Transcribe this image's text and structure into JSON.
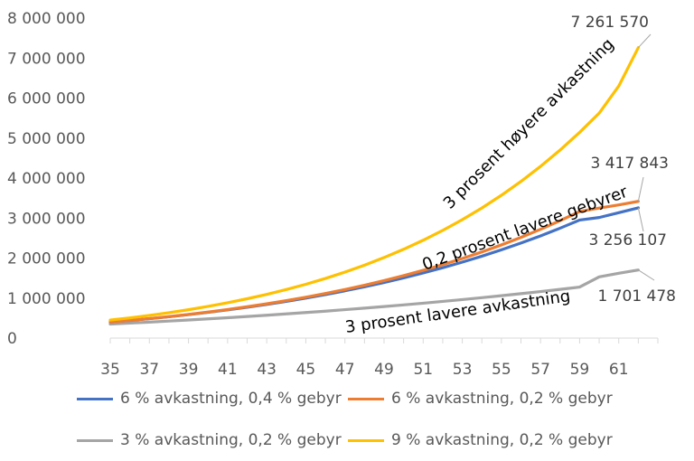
{
  "chart_data": {
    "type": "line",
    "x": [
      35,
      36,
      37,
      38,
      39,
      40,
      41,
      42,
      43,
      44,
      45,
      46,
      47,
      48,
      49,
      50,
      51,
      52,
      53,
      54,
      55,
      56,
      57,
      58,
      59,
      60,
      61,
      62
    ],
    "x_tick_labels": [
      "35",
      "37",
      "39",
      "41",
      "43",
      "45",
      "47",
      "49",
      "51",
      "53",
      "55",
      "57",
      "59",
      "61"
    ],
    "ylim": [
      0,
      8000000
    ],
    "y_tick_labels": [
      "0",
      "1 000 000",
      "2 000 000",
      "3 000 000",
      "4 000 000",
      "5 000 000",
      "6 000 000",
      "7 000 000",
      "8 000 000"
    ],
    "y_ticks": [
      0,
      1000000,
      2000000,
      3000000,
      4000000,
      5000000,
      6000000,
      7000000,
      8000000
    ],
    "grid": false,
    "legend_position": "bottom",
    "series": [
      {
        "name": "6 % avkastning, 0,4 % gebyr",
        "color": "#4472C4",
        "values": [
          400000,
          440000,
          485000,
          533000,
          586000,
          643000,
          704000,
          770000,
          841000,
          917000,
          999000,
          1087000,
          1181000,
          1282000,
          1389000,
          1504000,
          1627000,
          1758000,
          1898000,
          2047000,
          2206000,
          2375000,
          2555000,
          2747000,
          2951000,
          3014000,
          3134000,
          3256107
        ]
      },
      {
        "name": "6 % avkastning, 0,2 % gebyr",
        "color": "#ED7D31",
        "values": [
          400000,
          441000,
          487000,
          537000,
          591000,
          650000,
          713000,
          782000,
          856000,
          936000,
          1022000,
          1114000,
          1214000,
          1321000,
          1436000,
          1560000,
          1693000,
          1836000,
          1989000,
          2153000,
          2329000,
          2517000,
          2719000,
          2935000,
          3166000,
          3250000,
          3330000,
          3417843
        ]
      },
      {
        "name": "3 % avkastning, 0,2 % gebyr",
        "color": "#A5A5A5",
        "values": [
          350000,
          374000,
          399000,
          425000,
          452000,
          480000,
          509000,
          539000,
          571000,
          604000,
          638000,
          673000,
          710000,
          748000,
          788000,
          829000,
          872000,
          916000,
          962000,
          1010000,
          1059000,
          1110000,
          1163000,
          1218000,
          1275000,
          1530000,
          1620000,
          1701478
        ]
      },
      {
        "name": "9 % avkastning, 0,2 % gebyr",
        "color": "#FFC000",
        "values": [
          450000,
          505000,
          566000,
          634000,
          709000,
          792000,
          883000,
          983000,
          1093000,
          1213000,
          1345000,
          1490000,
          1649000,
          1823000,
          2013000,
          2220000,
          2446000,
          2692000,
          2960000,
          3252000,
          3570000,
          3916000,
          4292000,
          4700000,
          5143000,
          5624000,
          6300000,
          7261570
        ]
      }
    ],
    "data_labels": [
      {
        "text": "7 261 570",
        "series": 3
      },
      {
        "text": "3 417 843",
        "series": 1
      },
      {
        "text": "3 256 107",
        "series": 0
      },
      {
        "text": "1 701 478",
        "series": 2
      }
    ],
    "annotations": [
      {
        "text": "3 prosent høyere avkastning"
      },
      {
        "text": "0,2 prosent lavere gebyrer"
      },
      {
        "text": "3 prosent lavere avkastning"
      }
    ]
  }
}
